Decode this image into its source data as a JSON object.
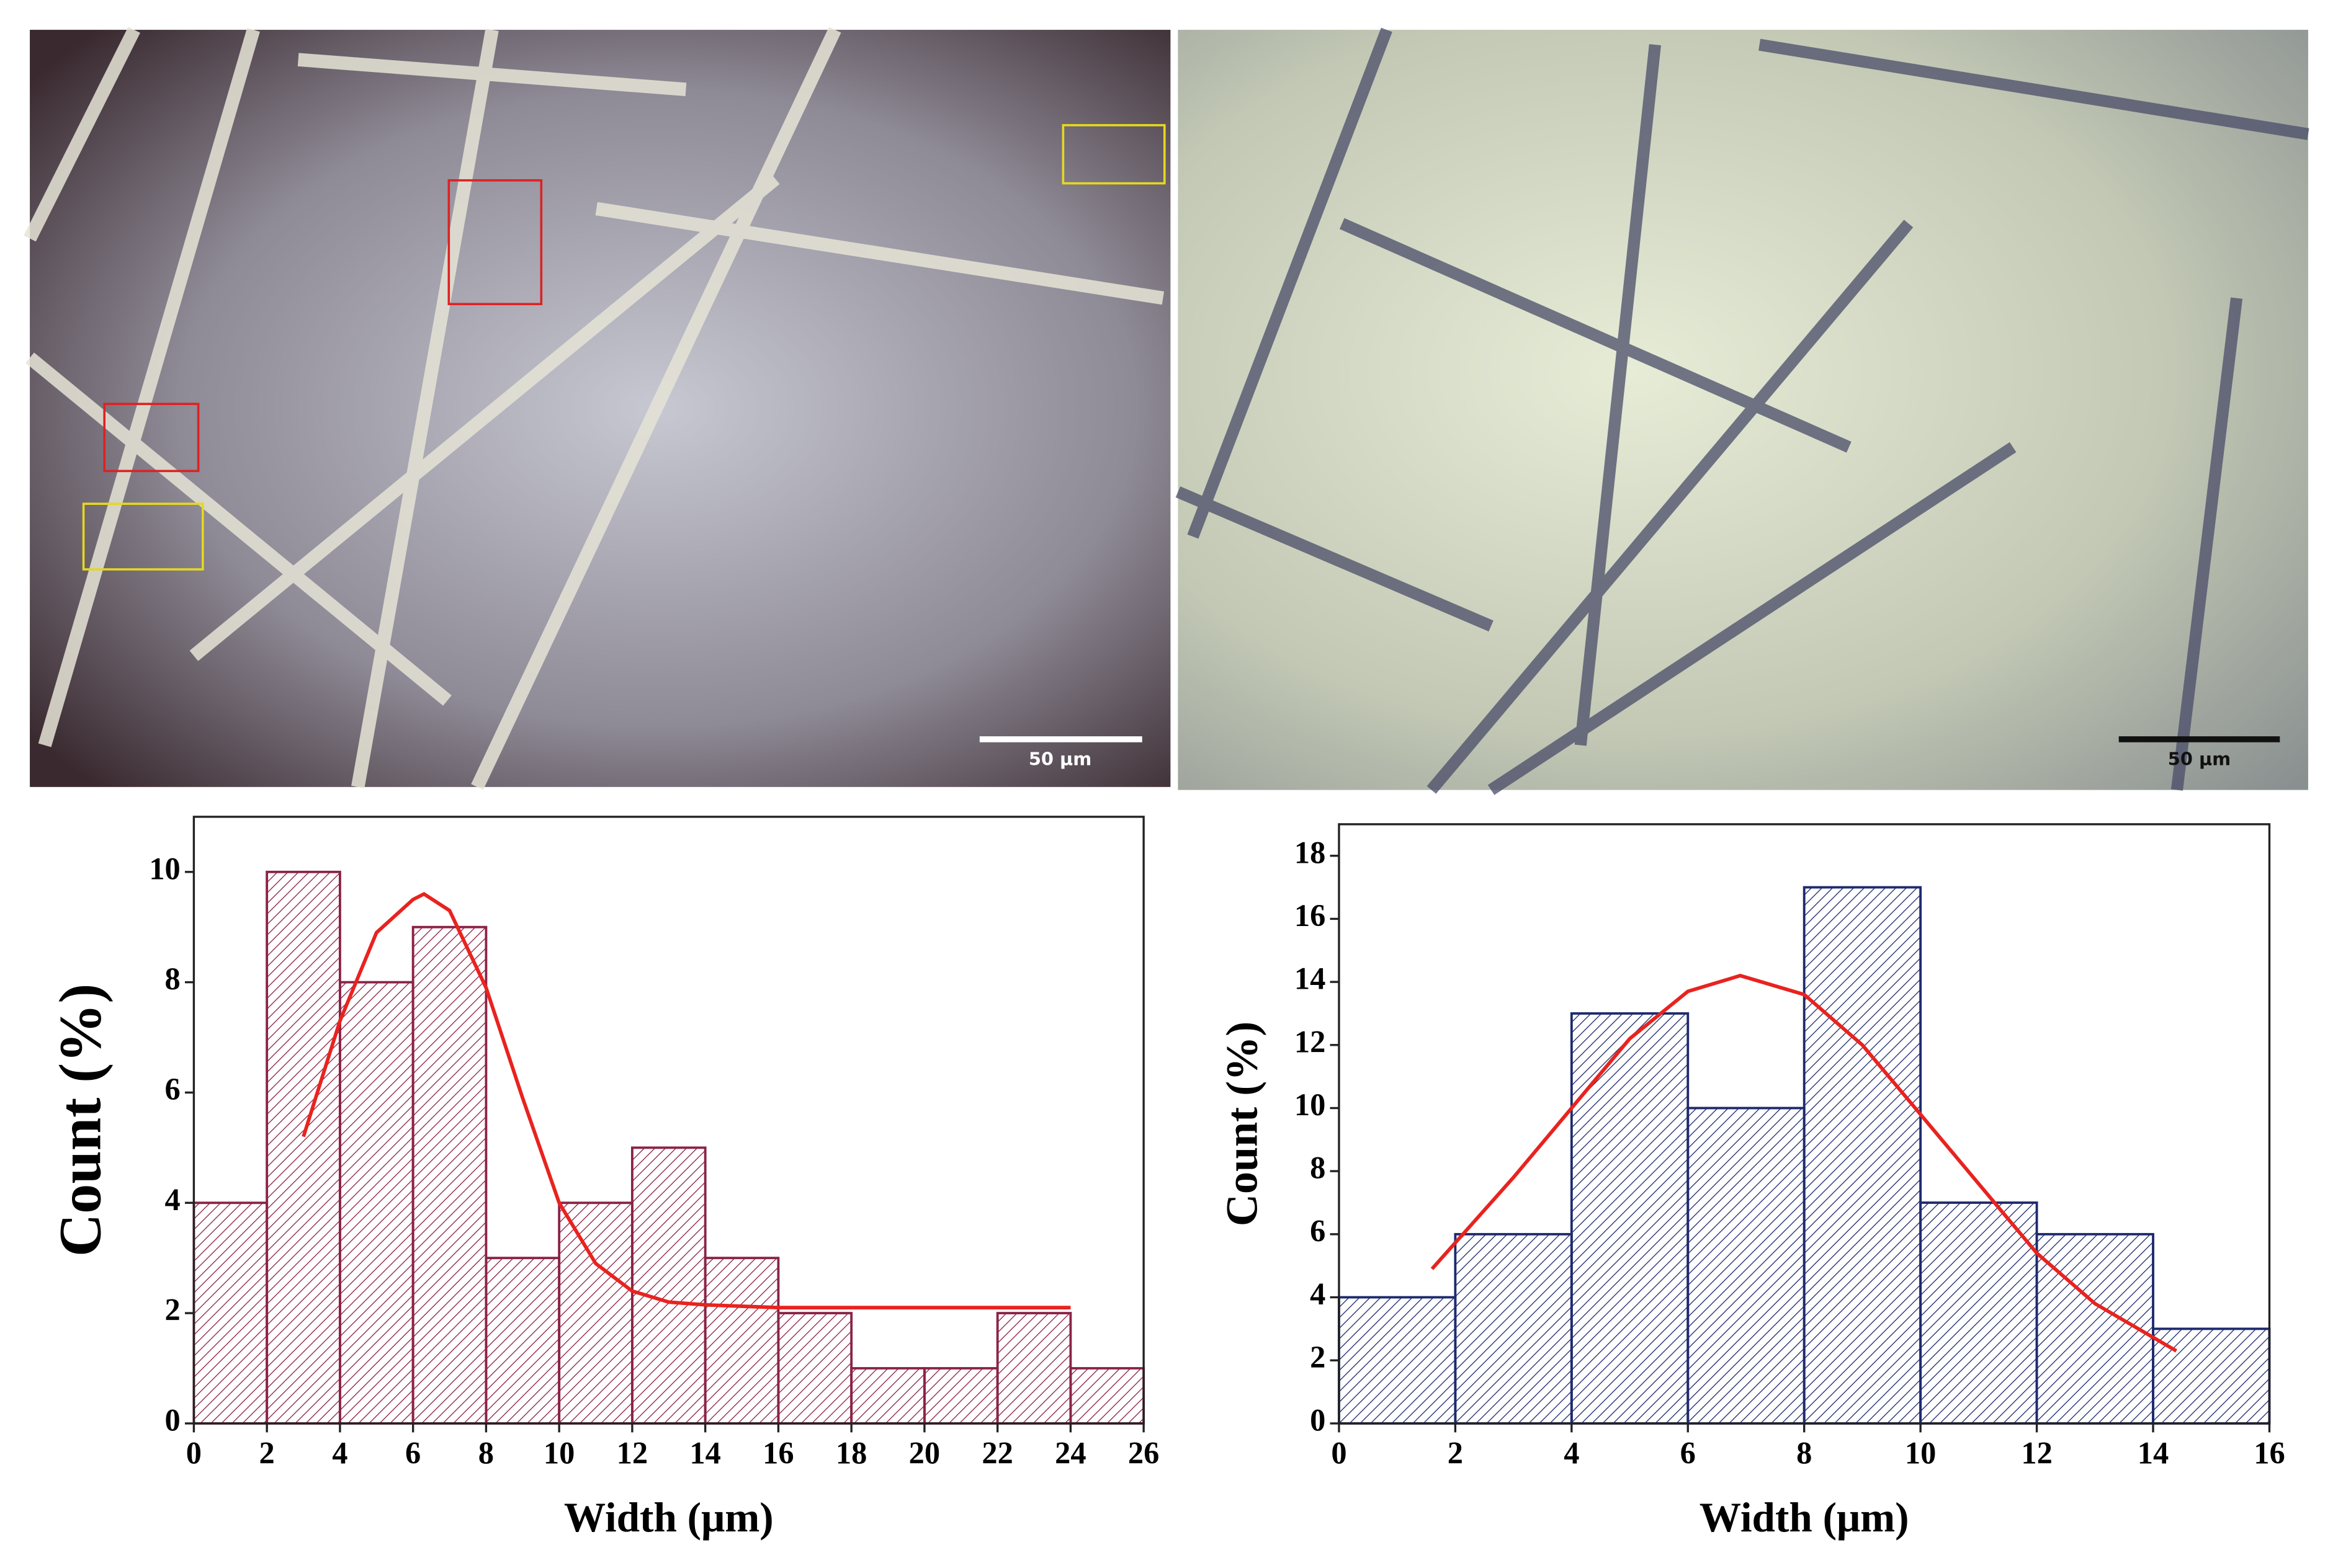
{
  "images": [
    {
      "scale_bar": "50 µm"
    },
    {
      "scale_bar": "50 µm"
    }
  ],
  "chart_data": [
    {
      "type": "histogram",
      "x_label": "Width (μm)",
      "y_label": "Count (%)",
      "color": "#8b2346",
      "bins": [
        0,
        2,
        4,
        6,
        8,
        10,
        12,
        14,
        16,
        18,
        20,
        22,
        24,
        26
      ],
      "values": [
        4,
        10,
        8,
        9,
        3,
        4,
        5,
        3,
        2,
        1,
        1,
        2,
        1
      ],
      "xlim": [
        0,
        26
      ],
      "ylim": [
        0,
        11
      ],
      "xticks": [
        0,
        2,
        4,
        6,
        8,
        10,
        12,
        14,
        16,
        18,
        20,
        22,
        24,
        26
      ],
      "yticks": [
        0,
        2,
        4,
        6,
        8,
        10
      ],
      "fit": {
        "color": "#e8231f",
        "x": [
          3,
          4,
          5,
          6,
          6.3,
          7,
          8,
          9,
          10,
          11,
          12,
          13,
          14,
          16,
          20,
          24
        ],
        "values": [
          5.2,
          7.3,
          8.9,
          9.5,
          9.6,
          9.3,
          7.9,
          5.9,
          4,
          2.9,
          2.4,
          2.2,
          2.15,
          2.1,
          2.1,
          2.1
        ]
      }
    },
    {
      "type": "histogram",
      "x_label": "Width (μm)",
      "y_label": "Count (%)",
      "color": "#1e2a6e",
      "bins": [
        0,
        2,
        4,
        6,
        8,
        10,
        12,
        14,
        16
      ],
      "values": [
        4,
        6,
        13,
        10,
        17,
        7,
        6,
        3
      ],
      "xlim": [
        0,
        16
      ],
      "ylim": [
        0,
        19
      ],
      "xticks": [
        0,
        2,
        4,
        6,
        8,
        10,
        12,
        14,
        16
      ],
      "yticks": [
        0,
        2,
        4,
        6,
        8,
        10,
        12,
        14,
        16,
        18
      ],
      "fit": {
        "color": "#e8231f",
        "x": [
          1.6,
          3,
          4,
          5,
          6,
          6.9,
          8,
          9,
          10,
          11,
          12,
          13,
          14.4
        ],
        "values": [
          4.9,
          7.8,
          10,
          12.2,
          13.7,
          14.2,
          13.6,
          12,
          9.8,
          7.6,
          5.4,
          3.8,
          2.3
        ]
      }
    }
  ]
}
